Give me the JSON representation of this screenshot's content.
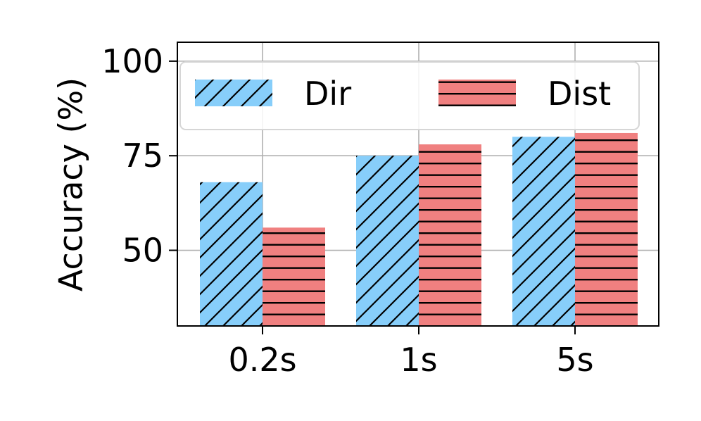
{
  "chart_data": {
    "type": "bar",
    "title": "",
    "xlabel": "",
    "ylabel": "Accuracy (%)",
    "categories": [
      "0.2s",
      "1s",
      "5s"
    ],
    "series": [
      {
        "name": "Dir",
        "values": [
          68,
          75,
          80
        ],
        "color": "#87cefa",
        "hatch": "diagonal"
      },
      {
        "name": "Dist",
        "values": [
          56,
          78,
          81
        ],
        "color": "#f08080",
        "hatch": "horizontal"
      }
    ],
    "ylim": [
      30,
      105
    ],
    "yticks": [
      50,
      75,
      100
    ],
    "grid": true,
    "legend": "top"
  }
}
